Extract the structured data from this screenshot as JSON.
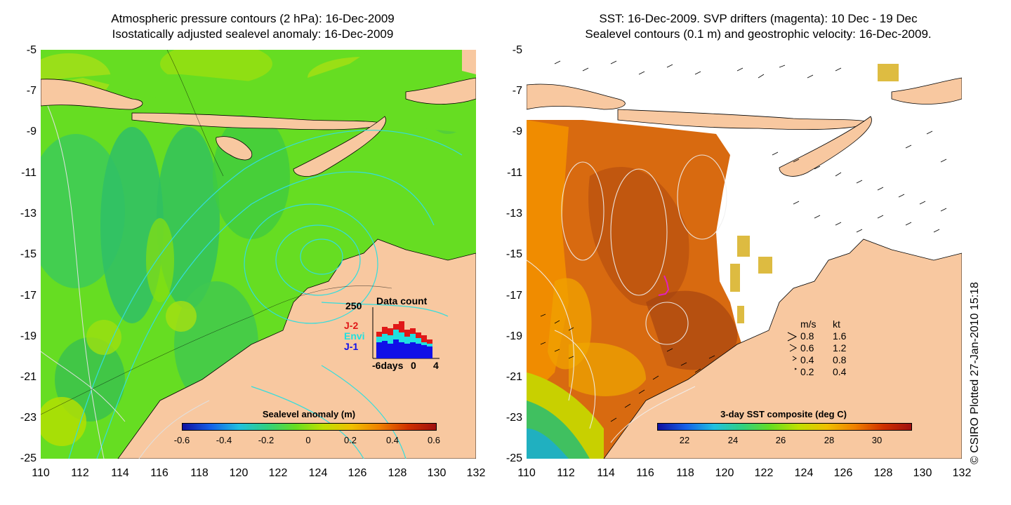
{
  "left_panel": {
    "title_line1": "Atmospheric pressure contours (2 hPa): 16-Dec-2009",
    "title_line2": "Isostatically adjusted sealevel anomaly: 16-Dec-2009",
    "colorbar_label": "Sealevel anomaly (m)",
    "colorbar_ticks": [
      "-0.6",
      "-0.4",
      "-0.2",
      "0",
      "0.2",
      "0.4",
      "0.6"
    ],
    "inset": {
      "title": "Data count",
      "ymax_label": "250",
      "xlabels": [
        "-6days",
        "0",
        "4"
      ],
      "legend": [
        {
          "label": "J-2",
          "color": "#e01818"
        },
        {
          "label": "Envi",
          "color": "#20e0e0"
        },
        {
          "label": "J-1",
          "color": "#1010e8"
        }
      ]
    }
  },
  "right_panel": {
    "title_line1": "SST: 16-Dec-2009. SVP drifters (magenta): 10 Dec - 19 Dec",
    "title_line2": "Sealevel contours (0.1 m) and geostrophic velocity: 16-Dec-2009.",
    "colorbar_label": "3-day SST composite (deg C)",
    "colorbar_ticks": [
      "22",
      "24",
      "26",
      "28",
      "30"
    ],
    "velocity_legend": {
      "header_ms": "m/s",
      "header_kt": "kt",
      "rows": [
        {
          "ms": "0.8",
          "kt": "1.6"
        },
        {
          "ms": "0.6",
          "kt": "1.2"
        },
        {
          "ms": "0.4",
          "kt": "0.8"
        },
        {
          "ms": "0.2",
          "kt": "0.4"
        }
      ]
    }
  },
  "axes": {
    "lat_ticks": [
      "-5",
      "-7",
      "-9",
      "-11",
      "-13",
      "-15",
      "-17",
      "-19",
      "-21",
      "-23",
      "-25"
    ],
    "lon_ticks": [
      "110",
      "112",
      "114",
      "116",
      "118",
      "120",
      "122",
      "124",
      "126",
      "128",
      "130",
      "132"
    ]
  },
  "credit": "© CSIRO Plotted 27-Jan-2010 15:18",
  "colors": {
    "land": "#f8c8a0",
    "sla_background": "#66dd22",
    "sst_background": "#d86a10",
    "contour_cyan": "#33dddd",
    "drifter": "#e020c0"
  }
}
